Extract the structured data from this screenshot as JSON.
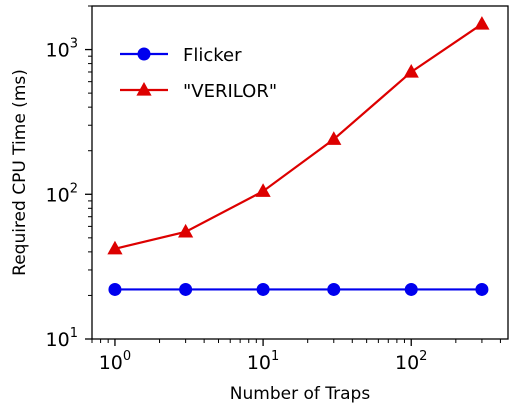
{
  "chart_data": {
    "type": "line",
    "title": "",
    "xlabel": "Number of Traps",
    "ylabel": "Required CPU Time (ms)",
    "x_scale": "log",
    "y_scale": "log",
    "xlim": [
      0.7,
      450
    ],
    "ylim": [
      10,
      2000
    ],
    "x_ticks": [
      {
        "value": 1,
        "base": "10",
        "exp": "0"
      },
      {
        "value": 10,
        "base": "10",
        "exp": "1"
      },
      {
        "value": 100,
        "base": "10",
        "exp": "2"
      }
    ],
    "y_ticks": [
      {
        "value": 10,
        "base": "10",
        "exp": "1"
      },
      {
        "value": 100,
        "base": "10",
        "exp": "2"
      },
      {
        "value": 1000,
        "base": "10",
        "exp": "3"
      }
    ],
    "grid": false,
    "legend_position": "top-left",
    "series": [
      {
        "name": "Flicker",
        "color": "#0000ee",
        "marker": "circle",
        "x": [
          1,
          3,
          10,
          30,
          100,
          300
        ],
        "y": [
          22,
          22,
          22,
          22,
          22,
          22
        ]
      },
      {
        "name": "\"VERILOR\"",
        "color": "#dd0000",
        "marker": "triangle",
        "x": [
          1,
          3,
          10,
          30,
          100,
          300
        ],
        "y": [
          42,
          55,
          105,
          240,
          700,
          1500
        ]
      }
    ]
  }
}
